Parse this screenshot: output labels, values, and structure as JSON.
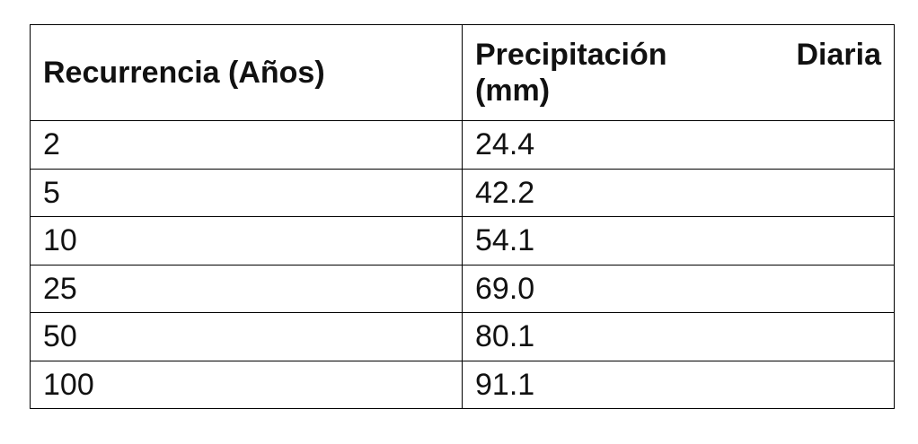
{
  "table": {
    "headers": {
      "col1": "Recurrencia (Años)",
      "col2_word1": "Precipitación",
      "col2_word2": "Diaria",
      "col2_line2": "(mm)"
    },
    "rows": [
      {
        "recurrencia": "2",
        "precipitacion": "24.4"
      },
      {
        "recurrencia": "5",
        "precipitacion": "42.2"
      },
      {
        "recurrencia": "10",
        "precipitacion": "54.1"
      },
      {
        "recurrencia": "25",
        "precipitacion": "69.0"
      },
      {
        "recurrencia": "50",
        "precipitacion": "80.1"
      },
      {
        "recurrencia": "100",
        "precipitacion": "91.1"
      }
    ]
  }
}
